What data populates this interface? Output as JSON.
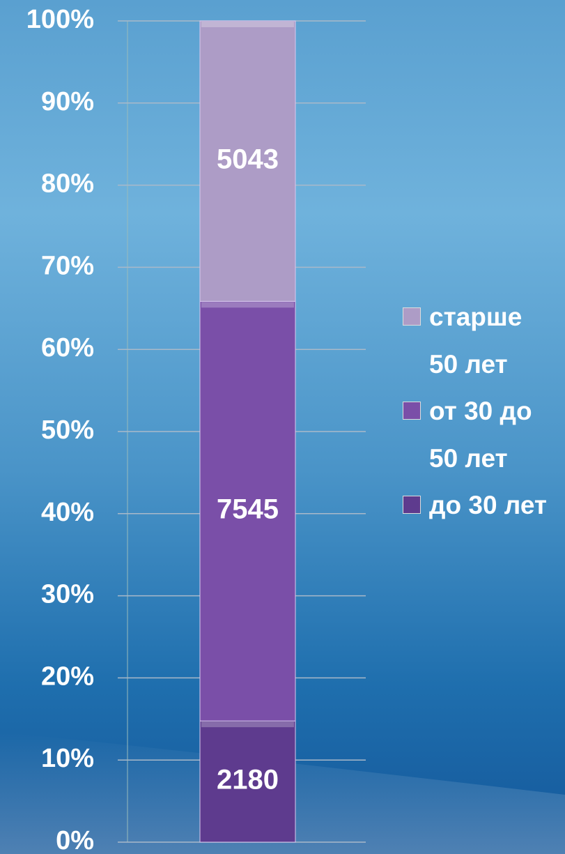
{
  "chart_data": {
    "type": "stacked_percent_bar",
    "series": [
      {
        "name": "до 30 лет",
        "color": "#5e3b8e",
        "values": [
          2180
        ]
      },
      {
        "name": "от 30 до 50 лет",
        "color": "#7a4fa8",
        "values": [
          7545
        ]
      },
      {
        "name": "старше 50 лет",
        "color": "#ad9cc6",
        "values": [
          5043
        ]
      }
    ],
    "ylim": [
      0,
      100
    ],
    "yticks": [
      {
        "value": 0,
        "label": "0%"
      },
      {
        "value": 10,
        "label": "10%"
      },
      {
        "value": 20,
        "label": "20%"
      },
      {
        "value": 30,
        "label": "30%"
      },
      {
        "value": 40,
        "label": "40%"
      },
      {
        "value": 50,
        "label": "50%"
      },
      {
        "value": 60,
        "label": "60%"
      },
      {
        "value": 70,
        "label": "70%"
      },
      {
        "value": 80,
        "label": "80%"
      },
      {
        "value": 90,
        "label": "90%"
      },
      {
        "value": 100,
        "label": "100%"
      }
    ],
    "grid": true,
    "legend": "right"
  }
}
